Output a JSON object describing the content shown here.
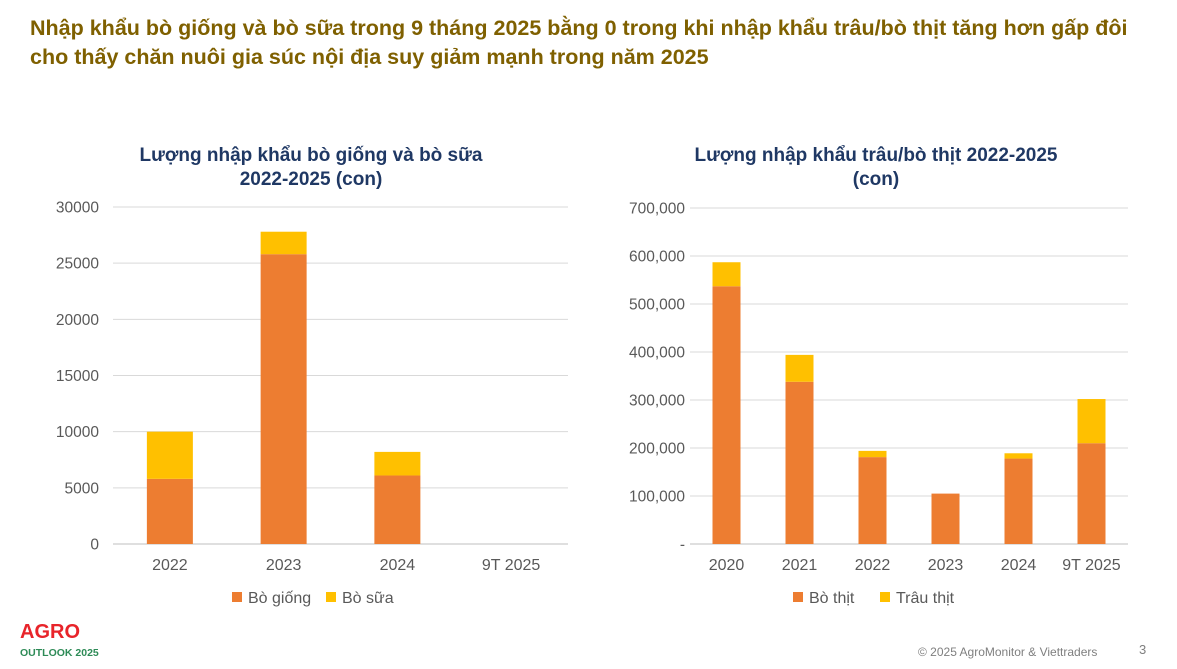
{
  "headline": "Nhập khẩu bò giống và bò sữa trong 9 tháng 2025 bằng 0 trong khi nhập khẩu trâu/bò thịt tăng hơn gấp đôi cho thấy chăn nuôi gia súc nội địa suy giảm mạnh trong năm 2025",
  "colors": {
    "headline": "#7f6000",
    "title": "#1f3864",
    "orange": "#ed7d31",
    "yellow": "#ffc000"
  },
  "chart_data": [
    {
      "type": "bar",
      "stacked": true,
      "title_lines": [
        "Lượng nhập khẩu bò giống và bò sữa",
        "2022-2025 (con)"
      ],
      "categories": [
        "2022",
        "2023",
        "2024",
        "9T 2025"
      ],
      "series": [
        {
          "name": "Bò giống",
          "color": "#ed7d31",
          "values": [
            5800,
            25800,
            6100,
            0
          ]
        },
        {
          "name": "Bò sữa",
          "color": "#ffc000",
          "values": [
            4200,
            2000,
            2100,
            0
          ]
        }
      ],
      "ylim": [
        0,
        30000
      ],
      "yticks": [
        0,
        5000,
        10000,
        15000,
        20000,
        25000,
        30000
      ],
      "ytick_labels": [
        "0",
        "5000",
        "10000",
        "15000",
        "20000",
        "25000",
        "30000"
      ],
      "grid": true,
      "legend": "bottom"
    },
    {
      "type": "bar",
      "stacked": true,
      "title_lines": [
        "Lượng nhập khẩu trâu/bò thịt 2022-2025",
        "(con)"
      ],
      "categories": [
        "2020",
        "2021",
        "2022",
        "2023",
        "2024",
        "9T 2025"
      ],
      "series": [
        {
          "name": "Bò thịt",
          "color": "#ed7d31",
          "values": [
            537000,
            338000,
            181000,
            105000,
            178000,
            210000
          ]
        },
        {
          "name": "Trâu thịt",
          "color": "#ffc000",
          "values": [
            50000,
            56000,
            13000,
            0,
            11000,
            92000
          ]
        }
      ],
      "ylim": [
        0,
        700000
      ],
      "yticks": [
        0,
        100000,
        200000,
        300000,
        400000,
        500000,
        600000,
        700000
      ],
      "ytick_labels": [
        "-",
        "100,000",
        "200,000",
        "300,000",
        "400,000",
        "500,000",
        "600,000",
        "700,000"
      ],
      "grid": true,
      "legend": "bottom"
    }
  ],
  "footer": {
    "logo_main": "AGRO",
    "logo_sub": "OUTLOOK 2025",
    "copyright": "© 2025 AgroMonitor & Viettraders",
    "page_number": "3"
  }
}
